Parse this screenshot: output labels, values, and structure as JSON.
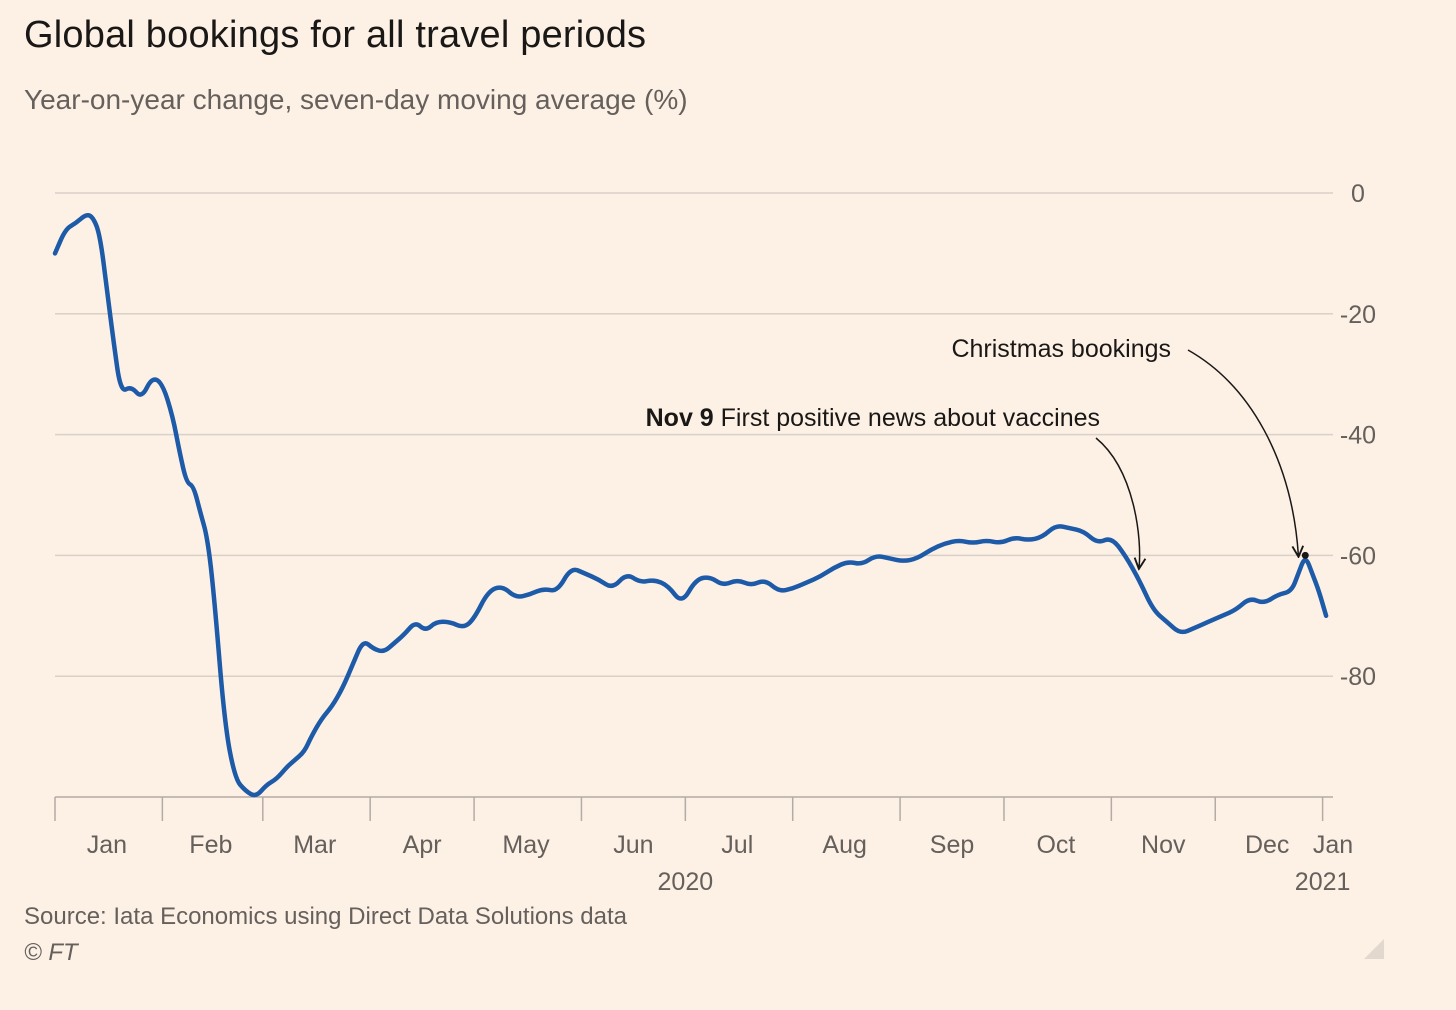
{
  "title": "Global bookings for all travel periods",
  "subtitle": "Year-on-year change, seven-day moving average (%)",
  "source": "Source: Iata Economics using Direct Data Solutions data",
  "copyright": "© FT",
  "colors": {
    "background": "#fdf1e6",
    "line": "#1d5aa7",
    "grid": "#d9d0c7",
    "text": "#66605c"
  },
  "chart_data": {
    "type": "line",
    "title": "Global bookings for all travel periods",
    "subtitle": "Year-on-year change, seven-day moving average (%)",
    "xlabel": "",
    "ylabel": "",
    "ylim": [
      -100,
      0
    ],
    "yticks": [
      0,
      -20,
      -40,
      -60,
      -80
    ],
    "xlim": [
      "2020-01-01",
      "2021-01-04"
    ],
    "x_axis_year_labels": [
      {
        "label": "2020",
        "at": "2020-07-01"
      },
      {
        "label": "2021",
        "at": "2021-01-01"
      }
    ],
    "x_tick_dates": [
      "2020-01-01",
      "2020-02-01",
      "2020-03-01",
      "2020-04-01",
      "2020-05-01",
      "2020-06-01",
      "2020-07-01",
      "2020-08-01",
      "2020-09-01",
      "2020-10-01",
      "2020-11-01",
      "2020-12-01",
      "2021-01-01"
    ],
    "x_month_labels": [
      {
        "label": "Jan",
        "at": "2020-01-16"
      },
      {
        "label": "Feb",
        "at": "2020-02-15"
      },
      {
        "label": "Mar",
        "at": "2020-03-16"
      },
      {
        "label": "Apr",
        "at": "2020-04-16"
      },
      {
        "label": "May",
        "at": "2020-05-16"
      },
      {
        "label": "Jun",
        "at": "2020-06-16"
      },
      {
        "label": "Jul",
        "at": "2020-07-16"
      },
      {
        "label": "Aug",
        "at": "2020-08-16"
      },
      {
        "label": "Sep",
        "at": "2020-09-16"
      },
      {
        "label": "Oct",
        "at": "2020-10-16"
      },
      {
        "label": "Nov",
        "at": "2020-11-16"
      },
      {
        "label": "Dec",
        "at": "2020-12-16"
      },
      {
        "label": "Jan",
        "at": "2021-01-04"
      }
    ],
    "grid": true,
    "legend": "none",
    "series": [
      {
        "dates": [
          "2020-01-01",
          "2020-01-04",
          "2020-01-07",
          "2020-01-10",
          "2020-01-12",
          "2020-01-14",
          "2020-01-16",
          "2020-01-18",
          "2020-01-20",
          "2020-01-23",
          "2020-01-26",
          "2020-01-29",
          "2020-02-01",
          "2020-02-04",
          "2020-02-06",
          "2020-02-08",
          "2020-02-10",
          "2020-02-12",
          "2020-02-14",
          "2020-02-16",
          "2020-02-19",
          "2020-02-22",
          "2020-02-25",
          "2020-02-28",
          "2020-03-02",
          "2020-03-05",
          "2020-03-08",
          "2020-03-10",
          "2020-03-13",
          "2020-03-15",
          "2020-03-18",
          "2020-03-21",
          "2020-03-24",
          "2020-03-27",
          "2020-03-30",
          "2020-04-02",
          "2020-04-05",
          "2020-04-08",
          "2020-04-11",
          "2020-04-14",
          "2020-04-17",
          "2020-04-20",
          "2020-04-24",
          "2020-04-28",
          "2020-05-01",
          "2020-05-05",
          "2020-05-09",
          "2020-05-13",
          "2020-05-17",
          "2020-05-21",
          "2020-05-25",
          "2020-05-29",
          "2020-06-02",
          "2020-06-06",
          "2020-06-10",
          "2020-06-14",
          "2020-06-18",
          "2020-06-22",
          "2020-06-26",
          "2020-06-30",
          "2020-07-04",
          "2020-07-08",
          "2020-07-12",
          "2020-07-16",
          "2020-07-20",
          "2020-07-24",
          "2020-07-28",
          "2020-08-01",
          "2020-08-05",
          "2020-08-09",
          "2020-08-13",
          "2020-08-17",
          "2020-08-21",
          "2020-08-25",
          "2020-08-29",
          "2020-09-02",
          "2020-09-06",
          "2020-09-10",
          "2020-09-14",
          "2020-09-18",
          "2020-09-22",
          "2020-09-26",
          "2020-09-30",
          "2020-10-04",
          "2020-10-08",
          "2020-10-12",
          "2020-10-16",
          "2020-10-20",
          "2020-10-24",
          "2020-10-28",
          "2020-11-01",
          "2020-11-05",
          "2020-11-09",
          "2020-11-13",
          "2020-11-17",
          "2020-11-21",
          "2020-11-25",
          "2020-11-29",
          "2020-12-03",
          "2020-12-07",
          "2020-12-11",
          "2020-12-15",
          "2020-12-19",
          "2020-12-23",
          "2020-12-25",
          "2020-12-27",
          "2020-12-29",
          "2020-12-31",
          "2021-01-02"
        ],
        "values": [
          -10,
          -6,
          -5,
          -3.5,
          -4,
          -7,
          -16,
          -25,
          -33,
          -32,
          -34,
          -30.5,
          -31.5,
          -37,
          -43,
          -48,
          -48.5,
          -53,
          -57,
          -67,
          -88,
          -97,
          -99,
          -100,
          -98,
          -97,
          -95,
          -94,
          -92.5,
          -90,
          -87,
          -85,
          -82,
          -78,
          -74,
          -75.5,
          -76,
          -74.5,
          -73,
          -71,
          -72.5,
          -71,
          -71,
          -72,
          -70.5,
          -66,
          -65,
          -67,
          -66.5,
          -65.5,
          -66,
          -62,
          -63,
          -64,
          -65.5,
          -63,
          -64.5,
          -64,
          -65,
          -68,
          -64,
          -63.5,
          -65,
          -64,
          -65,
          -64,
          -66,
          -65.5,
          -64.5,
          -63.5,
          -62,
          -61,
          -61.5,
          -60,
          -60.5,
          -61,
          -60.5,
          -59,
          -58,
          -57.5,
          -58,
          -57.5,
          -58,
          -57,
          -57.5,
          -57,
          -55,
          -55.5,
          -56,
          -58,
          -57,
          -60,
          -64,
          -69,
          -71,
          -73,
          -72,
          -71,
          -70,
          -69,
          -67,
          -68,
          -66.5,
          -66,
          -63,
          -60,
          -63,
          -66,
          -70
        ]
      }
    ],
    "annotations": [
      {
        "bold": "Nov 9",
        "text": " First positive news about vaccines",
        "date": "2020-11-09"
      },
      {
        "text": "Christmas bookings",
        "date": "2020-12-25"
      }
    ]
  }
}
